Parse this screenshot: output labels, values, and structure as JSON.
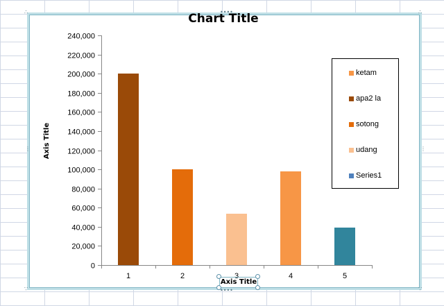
{
  "chart_data": {
    "type": "bar",
    "title": "Chart Title",
    "xlabel": "Axis Title",
    "ylabel": "Axis Title",
    "categories": [
      "1",
      "2",
      "3",
      "4",
      "5"
    ],
    "values": [
      200000,
      100000,
      54000,
      98000,
      39000
    ],
    "bar_colors": [
      "#9a4a08",
      "#e46c0a",
      "#fac090",
      "#f79646",
      "#31859c"
    ],
    "ylim": [
      0,
      240000
    ],
    "yticks": [
      "0",
      "20,000",
      "40,000",
      "60,000",
      "80,000",
      "100,000",
      "120,000",
      "140,000",
      "160,000",
      "180,000",
      "200,000",
      "220,000",
      "240,000"
    ],
    "grid": false,
    "legend_position": "right",
    "legend": [
      {
        "name": "ketam",
        "color": "#f79646"
      },
      {
        "name": "apa2 la",
        "color": "#9a4a08"
      },
      {
        "name": "sotong",
        "color": "#e46c0a"
      },
      {
        "name": "udang",
        "color": "#fac090"
      },
      {
        "name": "Series1",
        "color": "#4f81bd"
      }
    ]
  }
}
